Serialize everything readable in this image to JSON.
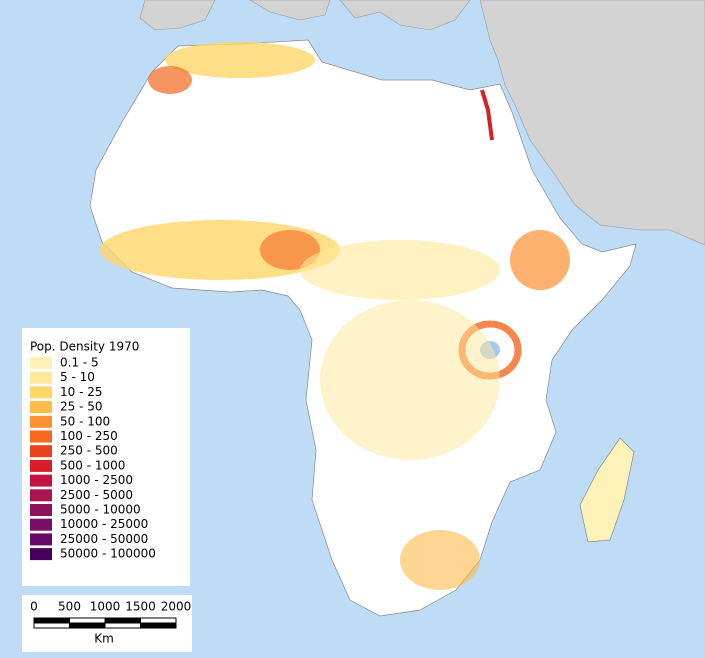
{
  "legend": {
    "title": "Pop. Density 1970",
    "items": [
      {
        "label": "0.1 - 5",
        "color": "#fff2b8"
      },
      {
        "label": "5 - 10",
        "color": "#ffe89a"
      },
      {
        "label": "10 - 25",
        "color": "#ffd66a"
      },
      {
        "label": "25 - 50",
        "color": "#fdbb4a"
      },
      {
        "label": "50 - 100",
        "color": "#fb9130"
      },
      {
        "label": "100 - 250",
        "color": "#f4681f"
      },
      {
        "label": "250 - 500",
        "color": "#e8431a"
      },
      {
        "label": "500 - 1000",
        "color": "#d81e26"
      },
      {
        "label": "1000 - 2500",
        "color": "#c41343"
      },
      {
        "label": "2500 - 5000",
        "color": "#a91452"
      },
      {
        "label": "5000 - 10000",
        "color": "#90115c"
      },
      {
        "label": "10000 - 25000",
        "color": "#7a0e63"
      },
      {
        "label": "25000 - 50000",
        "color": "#640a66"
      },
      {
        "label": "50000 - 100000",
        "color": "#48005e"
      }
    ]
  },
  "scale_bar": {
    "ticks": [
      0,
      500,
      1000,
      1500,
      2000
    ],
    "unit": "Km"
  }
}
